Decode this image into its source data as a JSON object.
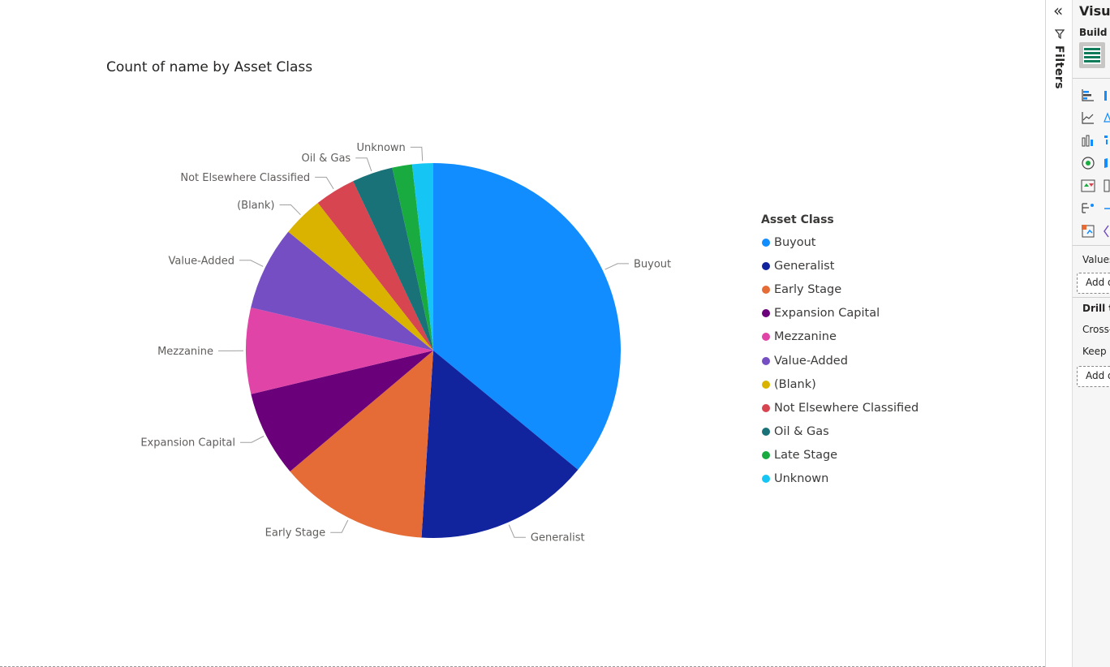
{
  "chart_data": {
    "type": "pie",
    "title": "Count of name by Asset Class",
    "legend_title": "Asset Class",
    "legend_position": "right",
    "categories": [
      "Buyout",
      "Generalist",
      "Early Stage",
      "Expansion Capital",
      "Mezzanine",
      "Value-Added",
      "(Blank)",
      "Not Elsewhere Classified",
      "Oil & Gas",
      "Late Stage",
      "Unknown"
    ],
    "values": [
      37.8,
      15.8,
      13.5,
      7.8,
      7.8,
      7.6,
      3.7,
      3.7,
      3.7,
      1.8,
      1.9
    ],
    "colors": [
      "#118DFF",
      "#12239E",
      "#E66C37",
      "#6B007B",
      "#E044A7",
      "#744EC2",
      "#D9B300",
      "#D64550",
      "#197278",
      "#1AAB40",
      "#15C6F4"
    ],
    "slice_labels": [
      "Buyout",
      "Generalist",
      "Early Stage",
      "Expansion Capital",
      "Mezzanine",
      "Value-Added",
      "(Blank)",
      "Not Elsewhere Classified",
      "Oil & Gas",
      "",
      "Unknown"
    ]
  },
  "filters_pane": {
    "label": "Filters"
  },
  "visualizations_pane": {
    "title": "Visua",
    "build_label": "Build v",
    "values_label": "Values",
    "add_data_label_1": "Add d",
    "drill_label": "Drill th",
    "cross_label": "Cross-",
    "keep_label": "Keep a",
    "add_data_label_2": "Add d"
  }
}
